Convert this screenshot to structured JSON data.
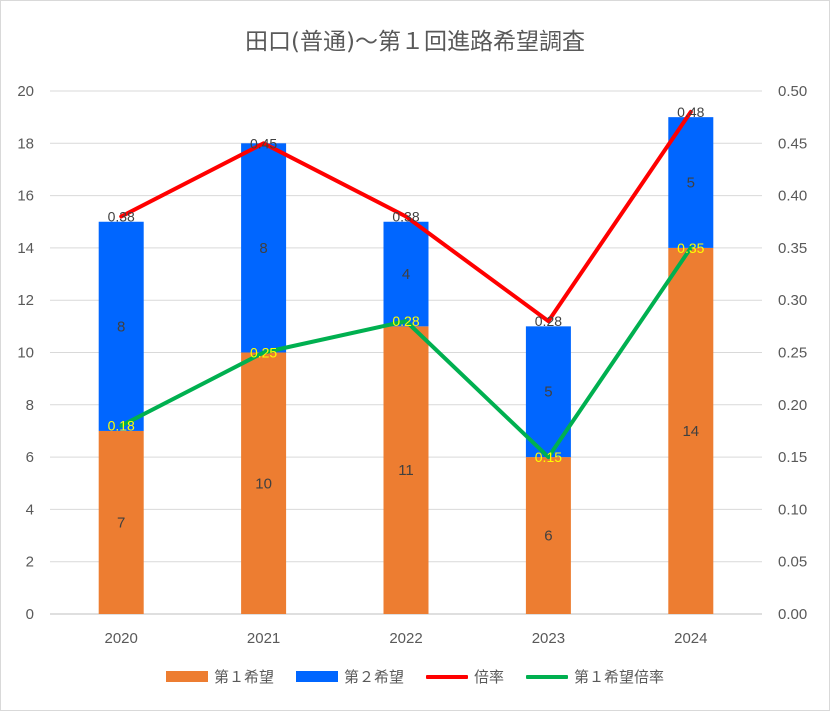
{
  "chart_data": {
    "type": "bar",
    "title": "田口(普通)〜第１回進路希望調査",
    "categories": [
      "2020",
      "2021",
      "2022",
      "2023",
      "2024"
    ],
    "series": [
      {
        "name": "第１希望",
        "type": "stacked-bar",
        "axis": "left",
        "color": "#ed7d31",
        "values": [
          7,
          10,
          11,
          6,
          14
        ]
      },
      {
        "name": "第２希望",
        "type": "stacked-bar",
        "axis": "left",
        "color": "#0066ff",
        "values": [
          8,
          8,
          4,
          5,
          5
        ]
      },
      {
        "name": "倍率",
        "type": "line",
        "axis": "right",
        "color": "#ff0000",
        "values": [
          0.38,
          0.45,
          0.38,
          0.28,
          0.48
        ]
      },
      {
        "name": "第１希望倍率",
        "type": "line",
        "axis": "right",
        "color": "#00b050",
        "values": [
          0.18,
          0.25,
          0.28,
          0.15,
          0.35
        ]
      }
    ],
    "bar_labels": {
      "first": [
        "7",
        "10",
        "11",
        "6",
        "14"
      ],
      "second": [
        "8",
        "8",
        "4",
        "5",
        "5"
      ]
    },
    "rate_labels": [
      "0.38",
      "0.45",
      "0.38",
      "0.28",
      "0.48"
    ],
    "first_rate_labels": [
      "0.18",
      "0.25",
      "0.28",
      "0.15",
      "0.35"
    ],
    "left_axis": {
      "ylim": [
        0,
        20
      ],
      "ticks": [
        "0",
        "2",
        "4",
        "6",
        "8",
        "10",
        "12",
        "14",
        "16",
        "18",
        "20"
      ]
    },
    "right_axis": {
      "ylim": [
        0,
        0.5
      ],
      "ticks": [
        "0.00",
        "0.05",
        "0.10",
        "0.15",
        "0.20",
        "0.25",
        "0.30",
        "0.35",
        "0.40",
        "0.45",
        "0.50"
      ]
    },
    "grid": true,
    "legend_position": "bottom"
  },
  "legend": {
    "first_label": "第１希望",
    "second_label": "第２希望",
    "rate_label": "倍率",
    "first_rate_label": "第１希望倍率"
  }
}
